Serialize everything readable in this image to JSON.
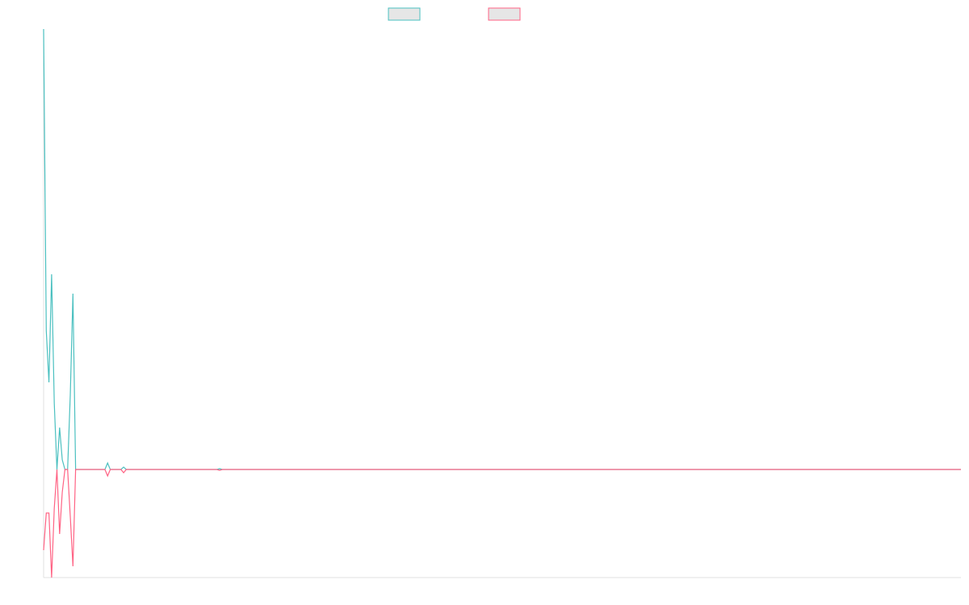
{
  "chart_data": {
    "type": "line",
    "x": [
      0,
      1,
      2,
      3,
      4,
      5,
      6,
      7,
      8,
      9,
      10,
      11,
      12,
      23,
      24,
      25,
      29,
      30,
      31,
      65,
      66,
      67,
      344
    ],
    "xlim": [
      0,
      344
    ],
    "ylim": [
      -134,
      546
    ],
    "legend": "top",
    "series": [
      {
        "color": "#4bc0c0",
        "values": [
          546,
          172,
          108,
          242,
          82,
          0,
          52,
          12,
          0,
          0,
          92,
          218,
          0,
          0,
          8,
          0,
          0,
          3,
          0,
          0,
          1,
          0,
          0
        ]
      },
      {
        "color": "#ff6384",
        "values": [
          -100,
          -54,
          -54,
          -134,
          -48,
          0,
          -80,
          -28,
          0,
          0,
          -58,
          -120,
          0,
          0,
          -8,
          0,
          0,
          -4,
          0,
          0,
          -1,
          0,
          0
        ]
      }
    ]
  }
}
